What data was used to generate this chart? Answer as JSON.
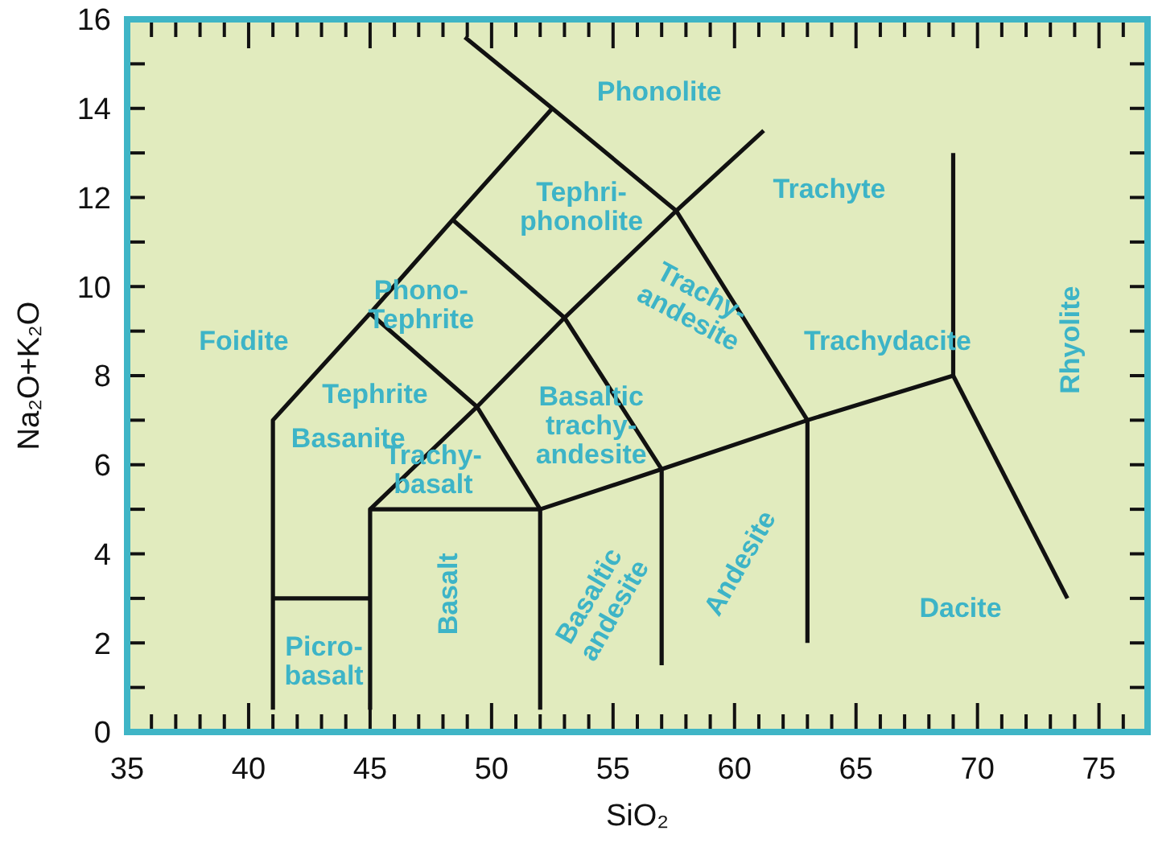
{
  "chart_data": {
    "type": "line",
    "xlabel": "SiO₂",
    "ylabel": "Na₂O+K₂O",
    "xlim": [
      35,
      77
    ],
    "ylim": [
      0,
      16
    ],
    "xticks": [
      35,
      {
        "value": 36,
        "label": null
      },
      {
        "value": 37,
        "label": null
      },
      {
        "value": 38,
        "label": null
      },
      {
        "value": 39,
        "label": null
      },
      40,
      {
        "value": 41,
        "label": null
      },
      {
        "value": 42,
        "label": null
      },
      {
        "value": 43,
        "label": null
      },
      {
        "value": 44,
        "label": null
      },
      45,
      {
        "value": 46,
        "label": null
      },
      {
        "value": 47,
        "label": null
      },
      {
        "value": 48,
        "label": null
      },
      {
        "value": 49,
        "label": null
      },
      50,
      {
        "value": 51,
        "label": null
      },
      {
        "value": 52,
        "label": null
      },
      {
        "value": 53,
        "label": null
      },
      {
        "value": 54,
        "label": null
      },
      55,
      {
        "value": 56,
        "label": null
      },
      {
        "value": 57,
        "label": null
      },
      {
        "value": 58,
        "label": null
      },
      {
        "value": 59,
        "label": null
      },
      60,
      {
        "value": 61,
        "label": null
      },
      {
        "value": 62,
        "label": null
      },
      {
        "value": 63,
        "label": null
      },
      {
        "value": 64,
        "label": null
      },
      65,
      {
        "value": 66,
        "label": null
      },
      {
        "value": 67,
        "label": null
      },
      {
        "value": 68,
        "label": null
      },
      {
        "value": 69,
        "label": null
      },
      70,
      {
        "value": 71,
        "label": null
      },
      {
        "value": 72,
        "label": null
      },
      {
        "value": 73,
        "label": null
      },
      {
        "value": 74,
        "label": null
      },
      75,
      {
        "value": 76,
        "label": null
      }
    ],
    "yticks": [
      0,
      {
        "value": 1,
        "label": null
      },
      2,
      {
        "value": 3,
        "label": null
      },
      4,
      {
        "value": 5,
        "label": null
      },
      6,
      {
        "value": 7,
        "label": null
      },
      8,
      {
        "value": 9,
        "label": null
      },
      10,
      {
        "value": 11,
        "label": null
      },
      12,
      {
        "value": 13,
        "label": null
      },
      14,
      {
        "value": 15,
        "label": null
      },
      16
    ],
    "grid": false,
    "marker": "none",
    "line_style": "solid",
    "series": [
      {
        "color": "#111111",
        "x": [
          41,
          41,
          45,
          48.4,
          52.5
        ],
        "values": [
          0.5,
          7,
          9.4,
          11.5,
          14
        ]
      },
      {
        "color": "#111111",
        "x": [
          41,
          45
        ],
        "values": [
          3,
          3
        ]
      },
      {
        "color": "#111111",
        "x": [
          45,
          45,
          52,
          57,
          63,
          69
        ],
        "values": [
          0.5,
          5,
          5,
          5.9,
          7,
          8
        ]
      },
      {
        "color": "#111111",
        "x": [
          52,
          52
        ],
        "values": [
          0.5,
          5
        ]
      },
      {
        "color": "#111111",
        "x": [
          57,
          57
        ],
        "values": [
          1.5,
          5.9
        ]
      },
      {
        "color": "#111111",
        "x": [
          63,
          63
        ],
        "values": [
          2,
          7
        ]
      },
      {
        "color": "#111111",
        "x": [
          69,
          69
        ],
        "values": [
          8,
          13
        ]
      },
      {
        "color": "#111111",
        "x": [
          69,
          73.7
        ],
        "values": [
          8,
          3
        ]
      },
      {
        "color": "#111111",
        "x": [
          45,
          49.4,
          53,
          57.6,
          61.2
        ],
        "values": [
          5,
          7.3,
          9.3,
          11.7,
          13.5
        ]
      },
      {
        "color": "#111111",
        "x": [
          45,
          49.4,
          52
        ],
        "values": [
          9.4,
          7.3,
          5
        ]
      },
      {
        "color": "#111111",
        "x": [
          48.4,
          53,
          57
        ],
        "values": [
          11.5,
          9.3,
          5.9
        ]
      },
      {
        "color": "#111111",
        "x": [
          48.9,
          52.5,
          57.6,
          63
        ],
        "values": [
          15.6,
          14,
          11.7,
          7
        ]
      }
    ],
    "annotations": [
      "Phonolite",
      "Tephri-\nphonolite",
      "Trachyte",
      "Phono-\nTephrite",
      "Foidite",
      "Trachy-\nandesite",
      "Trachydacite",
      "Rhyolite",
      "Tephrite",
      "Basanite",
      "Basaltic\ntrachy-\nandesite",
      "Trachy-\nbasalt",
      "Basalt",
      "Basaltic\nandesite",
      "Andesite",
      "Picro-\nbasalt",
      "Dacite"
    ]
  }
}
